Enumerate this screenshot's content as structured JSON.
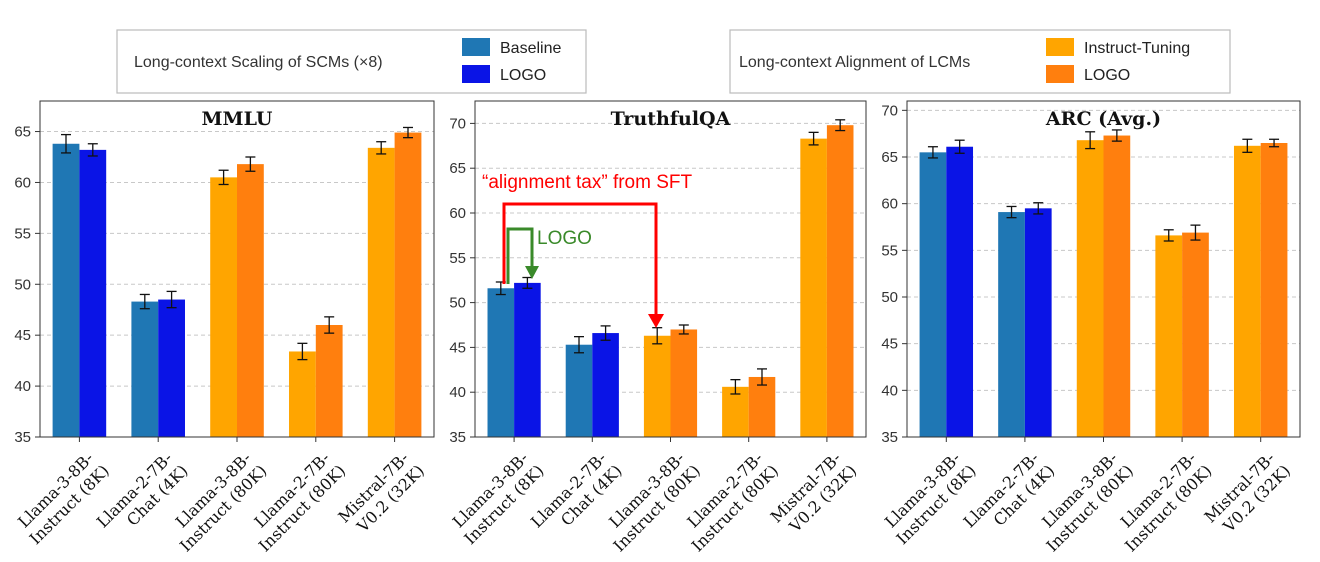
{
  "legends": [
    {
      "title": "Long-context Scaling of SCMs (×8)",
      "entries": [
        {
          "label": "Baseline",
          "color": "#1f77b4"
        },
        {
          "label": "LOGO",
          "color": "#0a14e6"
        }
      ]
    },
    {
      "title": "Long-context Alignment of LCMs",
      "entries": [
        {
          "label": "Instruct-Tuning",
          "color": "#ffa500"
        },
        {
          "label": "LOGO",
          "color": "#ff7f0e"
        }
      ]
    }
  ],
  "annotations": {
    "alignment_tax": "“alignment tax” from SFT",
    "logo_gain": "LOGO",
    "alignment_tax_color": "#ff0000",
    "logo_gain_color": "#3a8a2a"
  },
  "chart_data": [
    {
      "type": "bar",
      "title": "MMLU",
      "categories": [
        [
          "Llama-3-8B-",
          "Instruct (8K)"
        ],
        [
          "Llama-2-7B-",
          "Chat (4K)"
        ],
        [
          "Llama-3-8B-",
          "Instruct (80K)"
        ],
        [
          "Llama-2-7B-",
          "Instruct (80K)"
        ],
        [
          "Mistral-7B-",
          "V0.2 (32K)"
        ]
      ],
      "ylim": [
        35,
        68
      ],
      "yticks": [
        35,
        40,
        45,
        50,
        55,
        60,
        65
      ],
      "grid": true,
      "bars": [
        {
          "values": [
            63.8,
            48.3,
            60.5,
            43.4,
            63.4
          ],
          "errors": [
            0.9,
            0.7,
            0.7,
            0.8,
            0.6
          ],
          "colors": [
            "#1f77b4",
            "#1f77b4",
            "#ffa500",
            "#ffa500",
            "#ffa500"
          ]
        },
        {
          "values": [
            63.2,
            48.5,
            61.8,
            46.0,
            64.9
          ],
          "errors": [
            0.6,
            0.8,
            0.7,
            0.8,
            0.5
          ],
          "colors": [
            "#0a14e6",
            "#0a14e6",
            "#ff7f0e",
            "#ff7f0e",
            "#ff7f0e"
          ]
        }
      ]
    },
    {
      "type": "bar",
      "title": "TruthfulQA",
      "categories": [
        [
          "Llama-3-8B-",
          "Instruct (8K)"
        ],
        [
          "Llama-2-7B-",
          "Chat (4K)"
        ],
        [
          "Llama-3-8B-",
          "Instruct (80K)"
        ],
        [
          "Llama-2-7B-",
          "Instruct (80K)"
        ],
        [
          "Mistral-7B-",
          "V0.2 (32K)"
        ]
      ],
      "ylim": [
        35,
        72.5
      ],
      "yticks": [
        35,
        40,
        45,
        50,
        55,
        60,
        65,
        70
      ],
      "grid": true,
      "bars": [
        {
          "values": [
            51.6,
            45.3,
            46.3,
            40.6,
            68.3
          ],
          "errors": [
            0.7,
            0.9,
            0.9,
            0.8,
            0.7
          ],
          "colors": [
            "#1f77b4",
            "#1f77b4",
            "#ffa500",
            "#ffa500",
            "#ffa500"
          ]
        },
        {
          "values": [
            52.2,
            46.6,
            47.0,
            41.7,
            69.8
          ],
          "errors": [
            0.6,
            0.8,
            0.5,
            0.9,
            0.6
          ],
          "colors": [
            "#0a14e6",
            "#0a14e6",
            "#ff7f0e",
            "#ff7f0e",
            "#ff7f0e"
          ]
        }
      ]
    },
    {
      "type": "bar",
      "title": "ARC (Avg.)",
      "categories": [
        [
          "Llama-3-8B-",
          "Instruct (8K)"
        ],
        [
          "Llama-2-7B-",
          "Chat (4K)"
        ],
        [
          "Llama-3-8B-",
          "Instruct (80K)"
        ],
        [
          "Llama-2-7B-",
          "Instruct (80K)"
        ],
        [
          "Mistral-7B-",
          "V0.2 (32K)"
        ]
      ],
      "ylim": [
        35,
        71
      ],
      "yticks": [
        35,
        40,
        45,
        50,
        55,
        60,
        65,
        70
      ],
      "grid": true,
      "bars": [
        {
          "values": [
            65.5,
            59.1,
            66.8,
            56.6,
            66.2
          ],
          "errors": [
            0.6,
            0.6,
            0.9,
            0.6,
            0.7
          ],
          "colors": [
            "#1f77b4",
            "#1f77b4",
            "#ffa500",
            "#ffa500",
            "#ffa500"
          ]
        },
        {
          "values": [
            66.1,
            59.5,
            67.3,
            56.9,
            66.5
          ],
          "errors": [
            0.7,
            0.6,
            0.6,
            0.8,
            0.4
          ],
          "colors": [
            "#0a14e6",
            "#0a14e6",
            "#ff7f0e",
            "#ff7f0e",
            "#ff7f0e"
          ]
        }
      ]
    }
  ]
}
